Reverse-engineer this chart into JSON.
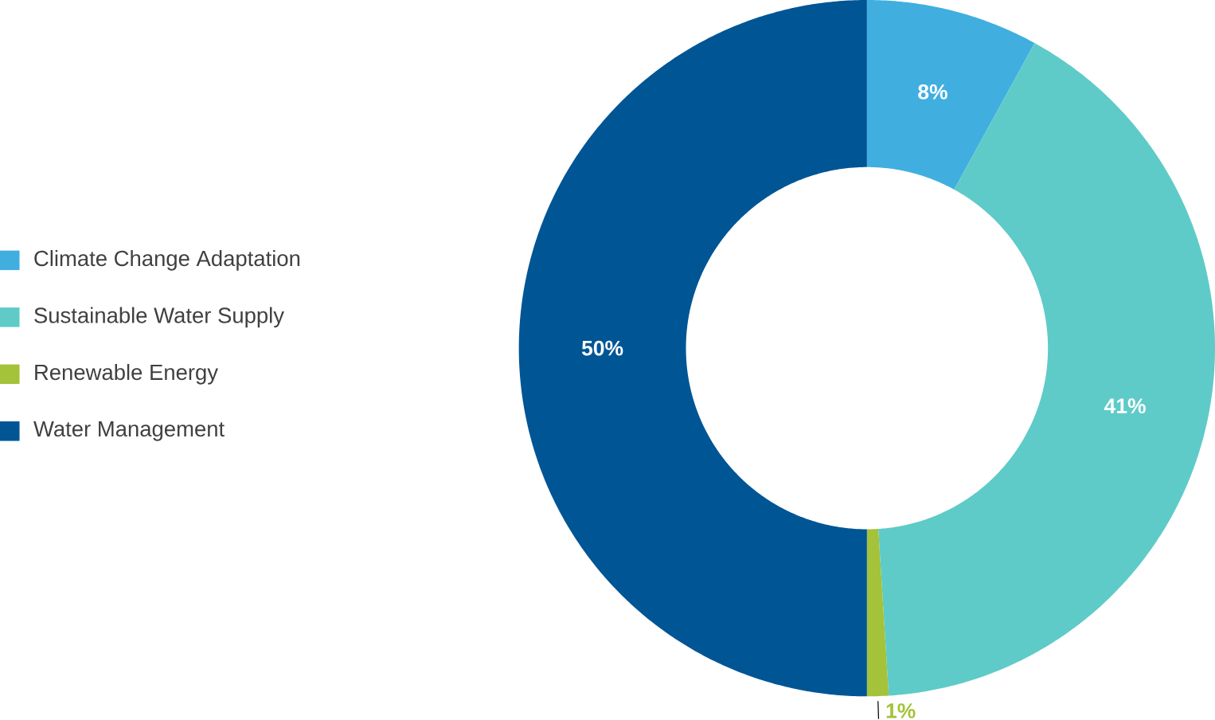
{
  "chart_data": {
    "type": "donut",
    "categories": [
      "Climate Change Adaptation",
      "Sustainable Water Supply",
      "Renewable Energy",
      "Water Management"
    ],
    "values": [
      8,
      41,
      1,
      50
    ],
    "colors": [
      "#41aee0",
      "#5ecbc8",
      "#a4c23a",
      "#005595"
    ],
    "value_labels": [
      "8%",
      "41%",
      "1%",
      "50%"
    ],
    "legend": "left"
  }
}
